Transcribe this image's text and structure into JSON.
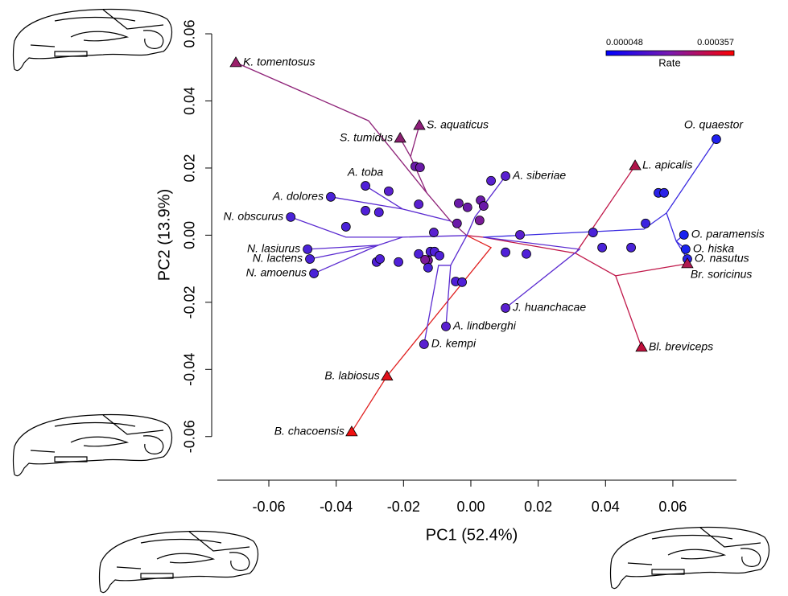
{
  "chart_data": {
    "type": "scatter",
    "x_label": "PC1 (52.4%)",
    "y_label": "PC2 (13.9%)",
    "xlim": [
      -0.0753,
      0.0789
    ],
    "ylim": [
      -0.073,
      0.063
    ],
    "xticks": [
      -0.06,
      -0.04,
      -0.02,
      {
        "value": 0,
        "label": "0.00"
      },
      0.02,
      0.04,
      0.06
    ],
    "yticks": [
      -0.06,
      -0.04,
      -0.02,
      {
        "value": 0,
        "label": "0.00"
      },
      0.02,
      0.04,
      0.06
    ],
    "colorbar": {
      "title": "Rate",
      "min": 4.8e-05,
      "max": 0.000357,
      "colors": [
        "#0000ff",
        "#7a1ab0",
        "#ff0000"
      ]
    },
    "branches": [
      {
        "color": "#8e2278",
        "x": [
          -0.0698,
          -0.0304,
          -0.0131,
          -0.006,
          -0.0012
        ],
        "y": [
          0.0514,
          0.0341,
          0.0126,
          0.0042,
          -0.0001
        ]
      },
      {
        "color": "#8e2278",
        "x": [
          -0.0153,
          -0.0179,
          -0.0131
        ],
        "y": [
          0.0327,
          0.0234,
          0.0126
        ]
      },
      {
        "color": "#8e2278",
        "x": [
          -0.021,
          -0.0179
        ],
        "y": [
          0.0289,
          0.0234
        ]
      },
      {
        "color": "#c0184a",
        "x": [
          0.0488,
          0.0311,
          0.0036,
          -0.0012
        ],
        "y": [
          0.0207,
          -0.0054,
          -0.0006,
          -0.0001
        ]
      },
      {
        "color": "#c0184a",
        "x": [
          0.0507,
          0.043,
          0.0311
        ],
        "y": [
          -0.0334,
          -0.0121,
          -0.0054
        ]
      },
      {
        "color": "#c0184a",
        "x": [
          0.0643,
          0.043
        ],
        "y": [
          -0.0085,
          -0.0121
        ]
      },
      {
        "color": "#e02020",
        "x": [
          -0.0354,
          -0.0249,
          0.006,
          -0.0012
        ],
        "y": [
          -0.0586,
          -0.042,
          -0.0037,
          -0.0001
        ]
      },
      {
        "color": "#3a2ae0",
        "x": [
          0.0729,
          0.0581,
          0.0514,
          0.0036
        ],
        "y": [
          0.0286,
          0.0066,
          0.0018,
          -0.0006
        ]
      },
      {
        "color": "#3a2ae0",
        "x": [
          0.0643,
          0.061,
          0.0581
        ],
        "y": [
          -0.0071,
          -0.0018,
          0.0066
        ]
      },
      {
        "color": "#3a2ae0",
        "x": [
          0.0633,
          0.061
        ],
        "y": [
          0.0001,
          -0.0018
        ]
      },
      {
        "color": "#3a2ae0",
        "x": [
          0.0638,
          0.061
        ],
        "y": [
          -0.0042,
          -0.0018
        ]
      },
      {
        "color": "#5a2ad0",
        "x": [
          0.0103,
          0.0323,
          0.0036
        ],
        "y": [
          -0.0217,
          -0.0042,
          -0.0006
        ]
      },
      {
        "color": "#5a2ad0",
        "x": [
          -0.0535,
          -0.0371,
          -0.0203,
          -0.0012
        ],
        "y": [
          0.0054,
          -0.0006,
          -0.0006,
          -0.0001
        ]
      },
      {
        "color": "#5a2ad0",
        "x": [
          -0.0478,
          -0.0275,
          -0.0203
        ],
        "y": [
          -0.0071,
          -0.003,
          -0.0006
        ]
      },
      {
        "color": "#5a2ad0",
        "x": [
          -0.0466,
          -0.0275
        ],
        "y": [
          -0.0114,
          -0.003
        ]
      },
      {
        "color": "#5a2ad0",
        "x": [
          -0.0485,
          -0.0275
        ],
        "y": [
          -0.0042,
          -0.003
        ]
      },
      {
        "color": "#5a2ad0",
        "x": [
          -0.0416,
          -0.0203,
          -0.006
        ],
        "y": [
          0.0114,
          0.0078,
          0.0042
        ]
      },
      {
        "color": "#5a2ad0",
        "x": [
          -0.0313,
          -0.0203
        ],
        "y": [
          0.0147,
          0.0078
        ]
      },
      {
        "color": "#5a2ad0",
        "x": [
          0.0103,
          0.0012,
          -0.0012
        ],
        "y": [
          0.0176,
          0.0054,
          -0.0001
        ]
      },
      {
        "color": "#5a2ad0",
        "x": [
          -0.0074,
          -0.006,
          -0.0012
        ],
        "y": [
          -0.0272,
          -0.009,
          -0.0001
        ]
      },
      {
        "color": "#5a2ad0",
        "x": [
          -0.0139,
          -0.0096,
          -0.006
        ],
        "y": [
          -0.0325,
          -0.009,
          -0.009
        ]
      }
    ],
    "points": [
      {
        "label": "K. tomentosus",
        "x": -0.0698,
        "y": 0.0514,
        "shape": "triangle",
        "color": "#9b1f6a"
      },
      {
        "label": "S. aquaticus",
        "x": -0.0153,
        "y": 0.0327,
        "shape": "triangle",
        "color": "#8e1e7a"
      },
      {
        "label": "S. tumidus",
        "x": -0.021,
        "y": 0.0289,
        "shape": "triangle",
        "color": "#8a2070"
      },
      {
        "label": "L. apicalis",
        "x": 0.0488,
        "y": 0.0207,
        "shape": "triangle",
        "color": "#b0154a"
      },
      {
        "label": "O. quaestor",
        "x": 0.0729,
        "y": 0.0286,
        "shape": "circle",
        "color": "#2020f0"
      },
      {
        "label": "A. siberiae",
        "x": 0.0103,
        "y": 0.0176,
        "shape": "circle",
        "color": "#5a20d0"
      },
      {
        "label": "A. toba",
        "x": -0.0313,
        "y": 0.0147,
        "shape": "circle",
        "color": "#5020d8"
      },
      {
        "label": "A. dolores",
        "x": -0.0416,
        "y": 0.0114,
        "shape": "circle",
        "color": "#4a22d8"
      },
      {
        "label": "N. obscurus",
        "x": -0.0535,
        "y": 0.0054,
        "shape": "circle",
        "color": "#4a22d8"
      },
      {
        "label": "O. paramensis",
        "x": 0.0633,
        "y": 0.0001,
        "shape": "circle",
        "color": "#1a22f0"
      },
      {
        "label": "O. hiska",
        "x": 0.0638,
        "y": -0.0042,
        "shape": "circle",
        "color": "#1a22f0"
      },
      {
        "label": "O. nasutus",
        "x": 0.0643,
        "y": -0.0071,
        "shape": "circle",
        "color": "#2a22e8"
      },
      {
        "label": "Br. soricinus",
        "x": 0.0643,
        "y": -0.0085,
        "shape": "triangle",
        "color": "#b01a50"
      },
      {
        "label": "N. lasiurus",
        "x": -0.0485,
        "y": -0.0042,
        "shape": "circle",
        "color": "#4a22d8"
      },
      {
        "label": "N. lactens",
        "x": -0.0478,
        "y": -0.0071,
        "shape": "circle",
        "color": "#4a22d8"
      },
      {
        "label": "N. amoenus",
        "x": -0.0466,
        "y": -0.0114,
        "shape": "circle",
        "color": "#4a22d8"
      },
      {
        "label": "J. huanchacae",
        "x": 0.0103,
        "y": -0.0217,
        "shape": "circle",
        "color": "#5a20d0"
      },
      {
        "label": "A. lindberghi",
        "x": -0.0074,
        "y": -0.0272,
        "shape": "circle",
        "color": "#5a20d0"
      },
      {
        "label": "D. kempi",
        "x": -0.0139,
        "y": -0.0325,
        "shape": "circle",
        "color": "#5a20d0"
      },
      {
        "label": "Bl. breviceps",
        "x": 0.0507,
        "y": -0.0334,
        "shape": "triangle",
        "color": "#c0103c"
      },
      {
        "label": "B. labiosus",
        "x": -0.0249,
        "y": -0.042,
        "shape": "triangle",
        "color": "#e0101a"
      },
      {
        "label": "B. chacoensis",
        "x": -0.0354,
        "y": -0.0586,
        "shape": "triangle",
        "color": "#f01010"
      },
      {
        "x": -0.0165,
        "y": 0.0205,
        "shape": "circle",
        "color": "#6a1aa8"
      },
      {
        "x": -0.0151,
        "y": 0.0202,
        "shape": "circle",
        "color": "#6a1aa8"
      },
      {
        "x": -0.0244,
        "y": 0.0131,
        "shape": "circle",
        "color": "#5a20d0"
      },
      {
        "x": -0.0155,
        "y": 0.0092,
        "shape": "circle",
        "color": "#5a20d0"
      },
      {
        "x": -0.0313,
        "y": 0.0073,
        "shape": "circle",
        "color": "#5020d8"
      },
      {
        "x": -0.0273,
        "y": 0.0068,
        "shape": "circle",
        "color": "#5020d8"
      },
      {
        "x": -0.0036,
        "y": 0.0095,
        "shape": "circle",
        "color": "#6a1aa8"
      },
      {
        "x": -0.001,
        "y": 0.0083,
        "shape": "circle",
        "color": "#6a1aa8"
      },
      {
        "x": 0.0029,
        "y": 0.0104,
        "shape": "circle",
        "color": "#6a1aa8"
      },
      {
        "x": 0.0038,
        "y": 0.0087,
        "shape": "circle",
        "color": "#6a1aa8"
      },
      {
        "x": 0.006,
        "y": 0.0162,
        "shape": "circle",
        "color": "#5a20d0"
      },
      {
        "x": -0.0041,
        "y": 0.0035,
        "shape": "circle",
        "color": "#6a1aa8"
      },
      {
        "x": 0.0026,
        "y": 0.0044,
        "shape": "circle",
        "color": "#7a1a98"
      },
      {
        "x": -0.011,
        "y": 0.0008,
        "shape": "circle",
        "color": "#5a20d0"
      },
      {
        "x": 0.0146,
        "y": 0.0001,
        "shape": "circle",
        "color": "#5a20d0"
      },
      {
        "x": 0.0363,
        "y": 0.0008,
        "shape": "circle",
        "color": "#4a22d8"
      },
      {
        "x": -0.0371,
        "y": 0.0025,
        "shape": "circle",
        "color": "#4a22d8"
      },
      {
        "x": -0.028,
        "y": -0.008,
        "shape": "circle",
        "color": "#5020d8"
      },
      {
        "x": -0.027,
        "y": -0.0071,
        "shape": "circle",
        "color": "#5020d8"
      },
      {
        "x": -0.0215,
        "y": -0.008,
        "shape": "circle",
        "color": "#5020d8"
      },
      {
        "x": -0.0155,
        "y": -0.0056,
        "shape": "circle",
        "color": "#5020d8"
      },
      {
        "x": -0.012,
        "y": -0.0049,
        "shape": "circle",
        "color": "#5020d8"
      },
      {
        "x": -0.0108,
        "y": -0.0049,
        "shape": "circle",
        "color": "#5020d8"
      },
      {
        "x": -0.0093,
        "y": -0.0061,
        "shape": "circle",
        "color": "#5020d8"
      },
      {
        "x": -0.0127,
        "y": -0.0075,
        "shape": "circle",
        "color": "#7a1a98"
      },
      {
        "x": -0.0136,
        "y": -0.0073,
        "shape": "circle",
        "color": "#7a1a98"
      },
      {
        "x": -0.0127,
        "y": -0.0097,
        "shape": "circle",
        "color": "#4a22d8"
      },
      {
        "x": -0.0045,
        "y": -0.0138,
        "shape": "circle",
        "color": "#5020d8"
      },
      {
        "x": -0.0026,
        "y": -0.014,
        "shape": "circle",
        "color": "#5020d8"
      },
      {
        "x": 0.0103,
        "y": -0.0051,
        "shape": "circle",
        "color": "#5020d8"
      },
      {
        "x": 0.0165,
        "y": -0.0056,
        "shape": "circle",
        "color": "#5020d8"
      },
      {
        "x": 0.039,
        "y": -0.0037,
        "shape": "circle",
        "color": "#4a22d8"
      },
      {
        "x": 0.0476,
        "y": -0.0037,
        "shape": "circle",
        "color": "#4a22d8"
      },
      {
        "x": 0.0519,
        "y": 0.0035,
        "shape": "circle",
        "color": "#3a22e0"
      },
      {
        "x": 0.0557,
        "y": 0.0126,
        "shape": "circle",
        "color": "#2a22e8"
      },
      {
        "x": 0.0574,
        "y": 0.0126,
        "shape": "circle",
        "color": "#2a22e8"
      }
    ]
  }
}
